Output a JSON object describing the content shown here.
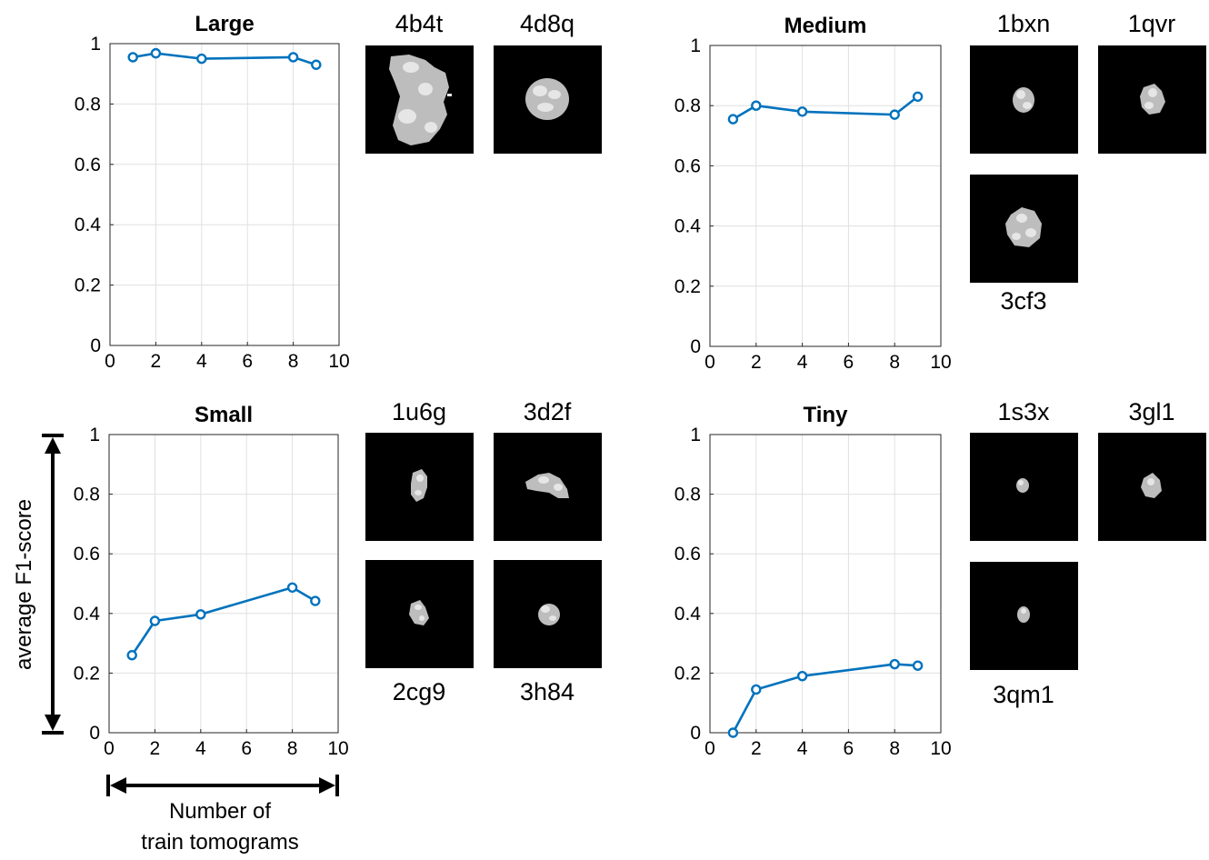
{
  "chart_data": [
    {
      "type": "line",
      "title": "Large",
      "x": [
        1,
        2,
        4,
        8,
        9
      ],
      "series": [
        {
          "values": [
            0.955,
            0.968,
            0.95,
            0.955,
            0.93
          ]
        }
      ],
      "xlim": [
        0,
        10
      ],
      "ylim": [
        0,
        1
      ],
      "xticks": [
        "0",
        "2",
        "4",
        "6",
        "8",
        "10"
      ],
      "yticks": [
        "0",
        "0.2",
        "0.4",
        "0.6",
        "0.8",
        "1"
      ],
      "grid": true,
      "color": "#0072BD"
    },
    {
      "type": "line",
      "title": "Medium",
      "x": [
        1,
        2,
        4,
        8,
        9
      ],
      "series": [
        {
          "values": [
            0.755,
            0.8,
            0.78,
            0.77,
            0.83
          ]
        }
      ],
      "xlim": [
        0,
        10
      ],
      "ylim": [
        0,
        1
      ],
      "xticks": [
        "0",
        "2",
        "4",
        "6",
        "8",
        "10"
      ],
      "yticks": [
        "0",
        "0.2",
        "0.4",
        "0.6",
        "0.8",
        "1"
      ],
      "grid": true,
      "color": "#0072BD"
    },
    {
      "type": "line",
      "title": "Small",
      "x": [
        1,
        2,
        4,
        8,
        9
      ],
      "series": [
        {
          "values": [
            0.26,
            0.375,
            0.397,
            0.487,
            0.442
          ]
        }
      ],
      "xlim": [
        0,
        10
      ],
      "ylim": [
        0,
        1
      ],
      "xticks": [
        "0",
        "2",
        "4",
        "6",
        "8",
        "10"
      ],
      "yticks": [
        "0",
        "0.2",
        "0.4",
        "0.6",
        "0.8",
        "1"
      ],
      "grid": true,
      "color": "#0072BD"
    },
    {
      "type": "line",
      "title": "Tiny",
      "x": [
        1,
        2,
        4,
        8,
        9
      ],
      "series": [
        {
          "values": [
            0.0,
            0.145,
            0.19,
            0.23,
            0.225
          ]
        }
      ],
      "xlim": [
        0,
        10
      ],
      "ylim": [
        0,
        1
      ],
      "xticks": [
        "0",
        "2",
        "4",
        "6",
        "8",
        "10"
      ],
      "yticks": [
        "0",
        "0.2",
        "0.4",
        "0.6",
        "0.8",
        "1"
      ],
      "grid": true,
      "color": "#0072BD"
    }
  ],
  "thumbnails": {
    "large": [
      "4b4t",
      "4d8q"
    ],
    "medium": [
      "1bxn",
      "1qvr",
      "3cf3"
    ],
    "small": [
      "1u6g",
      "3d2f",
      "2cg9",
      "3h84"
    ],
    "tiny": [
      "1s3x",
      "3gl1",
      "3qm1"
    ]
  },
  "annotations": {
    "ylabel": "average F1-score",
    "xlabel_line1": "Number of",
    "xlabel_line2": "train tomograms"
  }
}
